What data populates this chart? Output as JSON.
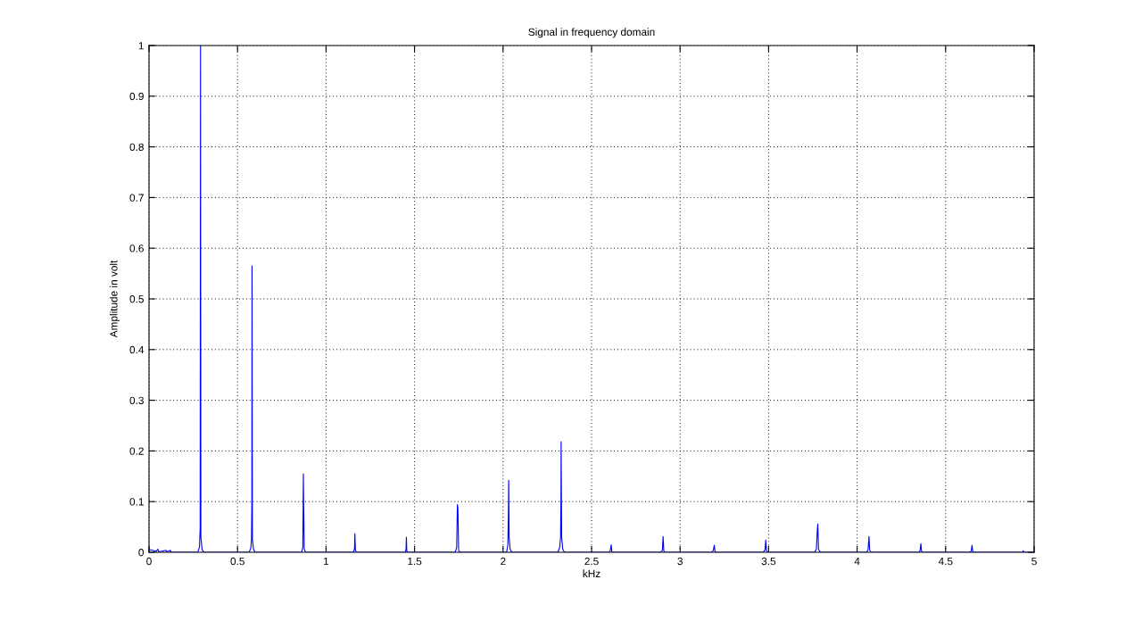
{
  "chart_data": {
    "type": "line",
    "title": "Signal in frequency domain",
    "xlabel": "kHz",
    "ylabel": "Amplitude in volt",
    "xlim": [
      0,
      5
    ],
    "xticks": [
      0,
      0.5,
      1,
      1.5,
      2,
      2.5,
      3,
      3.5,
      4,
      4.5,
      5
    ],
    "ylim": [
      0,
      1
    ],
    "yticks": [
      0,
      0.1,
      0.2,
      0.3,
      0.4,
      0.5,
      0.6,
      0.7,
      0.8,
      0.9,
      1
    ],
    "grid": true,
    "marker": "none",
    "line_style": "solid",
    "series": [
      {
        "color": "#0000ff",
        "x": [
          0,
          0.02,
          0.04,
          0.05,
          0.055,
          0.096,
          0.1,
          0.121,
          0.125,
          0.275,
          0.285,
          0.289,
          0.291,
          0.293,
          0.3,
          0.31,
          0.565,
          0.575,
          0.579,
          0.581,
          0.582,
          0.584,
          0.59,
          0.6,
          0.862,
          0.869,
          0.872,
          0.874,
          0.877,
          0.885,
          1.155,
          1.161,
          1.163,
          1.166,
          1.172,
          1.447,
          1.452,
          1.454,
          1.456,
          1.462,
          1.73,
          1.738,
          1.742,
          1.745,
          1.749,
          1.758,
          2.02,
          2.027,
          2.03,
          2.032,
          2.034,
          2.04,
          2.05,
          2.31,
          2.32,
          2.325,
          2.327,
          2.328,
          2.331,
          2.337,
          2.347,
          2.598,
          2.606,
          2.611,
          2.614,
          2.62,
          2.89,
          2.9,
          2.904,
          2.908,
          2.915,
          3.18,
          3.188,
          3.193,
          3.197,
          3.205,
          3.47,
          3.48,
          3.484,
          3.488,
          3.497,
          3.76,
          3.77,
          3.775,
          3.778,
          3.782,
          3.792,
          4.055,
          4.062,
          4.067,
          4.071,
          4.08,
          4.35,
          4.356,
          4.36,
          4.364,
          4.37,
          4.64,
          4.645,
          4.649,
          4.653,
          4.66,
          4.935,
          4.938,
          4.941,
          5
        ],
        "values": [
          0.005,
          0.004,
          0.002,
          0.006,
          0.001,
          0.004,
          0.001,
          0.004,
          0,
          0,
          0.01,
          0.047,
          1,
          0.03,
          0.005,
          0,
          0,
          0.008,
          0.026,
          0.098,
          0.565,
          0.026,
          0.006,
          0,
          0,
          0.01,
          0.155,
          0.084,
          0.006,
          0,
          0,
          0.007,
          0.037,
          0.004,
          0,
          0,
          0.006,
          0.03,
          0.003,
          0,
          0,
          0.01,
          0.094,
          0.086,
          0.004,
          0,
          0,
          0.015,
          0.071,
          0.142,
          0.03,
          0.006,
          0,
          0,
          0.01,
          0.03,
          0.11,
          0.218,
          0.03,
          0.006,
          0,
          0,
          0.004,
          0.015,
          0.002,
          0,
          0,
          0.004,
          0.031,
          0.003,
          0,
          0,
          0.004,
          0.014,
          0.002,
          0,
          0,
          0.005,
          0.024,
          0.003,
          0,
          0,
          0.006,
          0.042,
          0.056,
          0.006,
          0,
          0,
          0.006,
          0.031,
          0.004,
          0,
          0,
          0.004,
          0.017,
          0.002,
          0,
          0,
          0.004,
          0.014,
          0.002,
          0,
          0,
          0.003,
          0,
          0
        ]
      }
    ]
  }
}
